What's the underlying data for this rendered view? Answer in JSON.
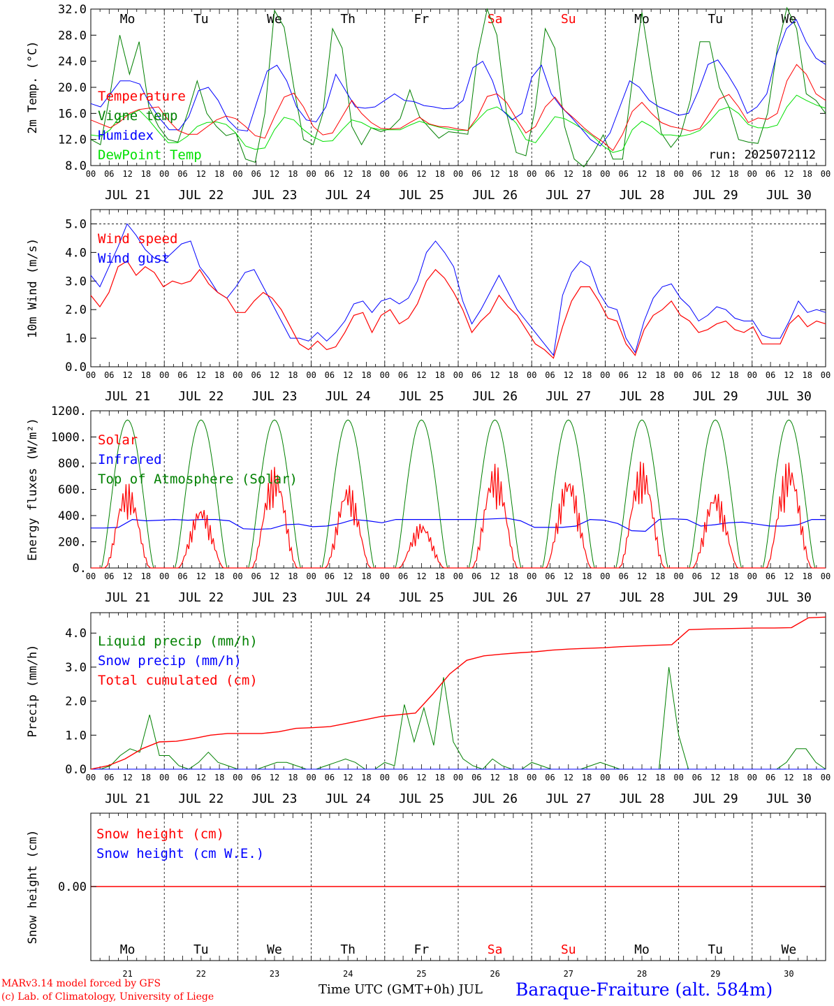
{
  "chart_data": [
    {
      "id": "temp",
      "type": "line",
      "ylabel": "2m Temp. (°C)",
      "ylim": [
        8,
        32
      ],
      "yticks": [
        "8.0",
        "12.0",
        "16.0",
        "20.0",
        "24.0",
        "28.0",
        "32.0"
      ],
      "ytick_values": [
        8,
        12,
        16,
        20,
        24,
        28,
        32
      ],
      "show_day_names": true,
      "note": "run: 2025072112",
      "legend": [
        "Temperature",
        "Vigne temp",
        "Humidex",
        "DewPoint Temp"
      ],
      "series": [
        {
          "name": "Temperature",
          "color": "#ff0000",
          "values": [
            15,
            14.4,
            13.8,
            14.7,
            16,
            16.6,
            16.8,
            17,
            15,
            13.4,
            12.8,
            12.8,
            13.9,
            15,
            15.6,
            15.2,
            14,
            12.6,
            12.2,
            15.5,
            18.5,
            19.1,
            17,
            14,
            12.7,
            13,
            15.5,
            18,
            16,
            14.6,
            13.7,
            13.6,
            13.7,
            14.6,
            15.4,
            14.4,
            14,
            13.9,
            13.6,
            13.4,
            15.5,
            18.6,
            19,
            17.7,
            15.2,
            13,
            14,
            17,
            18.5,
            16.5,
            15.2,
            13.8,
            12.6,
            11.6,
            10.3,
            12.8,
            16.3,
            17.7,
            16,
            14.6,
            14,
            13.7,
            13.3,
            13.7,
            16,
            18.2,
            18.9,
            17,
            14.6,
            15.3,
            15.1,
            16,
            21,
            23.5,
            22,
            19,
            18
          ]
        },
        {
          "name": "Vigne temp",
          "color": "#008000",
          "values": [
            12,
            11.2,
            19,
            28,
            22,
            27,
            17,
            14,
            12,
            11.6,
            16,
            21,
            16,
            14,
            12.6,
            13,
            9,
            8.5,
            16,
            31.8,
            29.2,
            20,
            12,
            11.2,
            16,
            29,
            26,
            14,
            11.2,
            13.8,
            13.2,
            13.7,
            15.2,
            19.6,
            15.5,
            13.8,
            12.2,
            13.2,
            13,
            12.8,
            25,
            32,
            28,
            16,
            10,
            9.5,
            17,
            29,
            26,
            14,
            9,
            7,
            10,
            12.7,
            9,
            9,
            21,
            31.5,
            22,
            13,
            10.8,
            12.7,
            18,
            27,
            27,
            20,
            17,
            12,
            11.6,
            11.4,
            16,
            26,
            33.5,
            29,
            19,
            18,
            16
          ]
        },
        {
          "name": "Humidex",
          "color": "#0000ff",
          "values": [
            17.5,
            17,
            19,
            21,
            21,
            20.5,
            17.5,
            15.3,
            13.5,
            13.5,
            15.5,
            19.5,
            20,
            18,
            15,
            13.5,
            13.3,
            18,
            22.5,
            23.4,
            21,
            17,
            15,
            14.7,
            17,
            22,
            19.5,
            17,
            16.8,
            17,
            18,
            19,
            18,
            17.8,
            17.2,
            17,
            16.7,
            16.8,
            18,
            23,
            24,
            21,
            16.5,
            15,
            16,
            21.5,
            23.4,
            19,
            17,
            15.5,
            13.8,
            12,
            11,
            13,
            17,
            21,
            20,
            18,
            17,
            16.4,
            15.7,
            16,
            19.4,
            23.5,
            24.2,
            22,
            19.5,
            16,
            17,
            19,
            25,
            29,
            30.4,
            27,
            24.5,
            23.5
          ]
        },
        {
          "name": "DewPoint Temp",
          "color": "#00e000",
          "values": [
            12.7,
            12.5,
            13.5,
            15.5,
            15.8,
            16.5,
            15,
            13.2,
            11.5,
            11.5,
            12.5,
            14,
            14.6,
            14.7,
            14.3,
            13,
            11,
            10.5,
            10.7,
            13.5,
            15.4,
            15,
            13.5,
            12.4,
            11.7,
            11.8,
            13.5,
            15,
            14.6,
            13.8,
            13.5,
            13.5,
            13.5,
            14.2,
            14.8,
            14.3,
            13.9,
            13.6,
            13.4,
            13.4,
            15,
            16.5,
            17,
            16,
            14.5,
            12,
            11.5,
            13.5,
            15.5,
            15.2,
            14.4,
            13.5,
            12.4,
            11,
            10,
            10.4,
            13.5,
            14.8,
            14,
            12.7,
            12.7,
            12.5,
            12.8,
            13.4,
            14.8,
            16.5,
            17,
            16,
            14.3,
            13.8,
            13.8,
            14.2,
            17,
            18.8,
            18,
            17.3,
            16.8
          ]
        }
      ]
    },
    {
      "id": "wind",
      "type": "line",
      "ylabel": "10m Wind (m/s)",
      "ylim": [
        0,
        5.5
      ],
      "yticks": [
        "0.0",
        "1.0",
        "2.0",
        "3.0",
        "4.0",
        "5.0"
      ],
      "ytick_values": [
        0,
        1,
        2,
        3,
        4,
        5
      ],
      "hline": 5,
      "legend": [
        "Wind speed",
        "Wind gust"
      ],
      "series": [
        {
          "name": "Wind speed",
          "color": "#ff0000",
          "values": [
            2.5,
            2.1,
            2.6,
            3.5,
            3.7,
            3.2,
            3.5,
            3.3,
            2.8,
            3,
            2.9,
            3,
            3.4,
            2.9,
            2.6,
            2.4,
            1.9,
            1.9,
            2.3,
            2.6,
            2.4,
            2,
            1.4,
            0.8,
            0.6,
            0.9,
            0.6,
            0.7,
            1.2,
            1.8,
            1.9,
            1.2,
            1.8,
            2,
            1.5,
            1.7,
            2.2,
            3,
            3.4,
            3.1,
            2.6,
            2,
            1.2,
            1.6,
            1.9,
            2.5,
            2.1,
            1.8,
            1.3,
            0.8,
            0.6,
            0.3,
            1.4,
            2.3,
            2.8,
            2.8,
            2.3,
            1.7,
            1.6,
            0.8,
            0.4,
            1.3,
            1.8,
            2,
            2.3,
            1.8,
            1.6,
            1.2,
            1.3,
            1.5,
            1.6,
            1.3,
            1.2,
            1.4,
            0.8,
            0.8,
            0.8,
            1.5,
            1.8,
            1.4,
            1.6,
            1.5
          ]
        },
        {
          "name": "Wind gust",
          "color": "#0000ff",
          "values": [
            3.2,
            2.8,
            3.5,
            4.2,
            5,
            4.6,
            4.1,
            3.8,
            3.7,
            4,
            4.3,
            4.4,
            3.5,
            3.1,
            2.6,
            2.4,
            2.8,
            3.3,
            3.4,
            2.8,
            2.2,
            1.6,
            1,
            1,
            0.9,
            1.2,
            0.9,
            1.2,
            1.6,
            2.2,
            2.3,
            1.9,
            2.3,
            2.4,
            2.2,
            2.4,
            3,
            4,
            4.4,
            4,
            3.5,
            2.3,
            1.5,
            2,
            2.6,
            3.2,
            2.6,
            2,
            1.6,
            1.2,
            0.8,
            0.4,
            2.5,
            3.3,
            3.7,
            3.5,
            2.6,
            2.1,
            2,
            1,
            0.5,
            1.6,
            2.4,
            2.8,
            2.9,
            2.4,
            2.1,
            1.6,
            1.8,
            2.1,
            2,
            1.7,
            1.6,
            1.6,
            1.1,
            1,
            1,
            1.6,
            2.3,
            1.9,
            2,
            1.9
          ]
        }
      ]
    },
    {
      "id": "energy",
      "type": "line",
      "ylabel": "Energy fluxes (W/m²)",
      "ylim": [
        0,
        1200
      ],
      "yticks": [
        "0.",
        "200.",
        "400.",
        "600.",
        "800.",
        "1000.",
        "1200."
      ],
      "ytick_values": [
        0,
        200,
        400,
        600,
        800,
        1000,
        1200
      ],
      "legend": [
        "Solar",
        "Infrared",
        "Top of Atmosphere (Solar)"
      ],
      "toa_peak": 1130,
      "solar_peaks": [
        650,
        480,
        780,
        650,
        350,
        800,
        720,
        820,
        600,
        830
      ],
      "infrared_values": [
        305,
        305,
        310,
        370,
        360,
        365,
        370,
        365,
        370,
        370,
        360,
        300,
        295,
        300,
        330,
        335,
        315,
        320,
        340,
        370,
        360,
        345,
        370,
        370,
        370,
        370,
        370,
        370,
        370,
        375,
        380,
        360,
        310,
        310,
        310,
        320,
        370,
        365,
        340,
        285,
        280,
        370,
        375,
        370,
        320,
        330,
        345,
        350,
        335,
        320,
        320,
        330,
        370,
        370
      ]
    },
    {
      "id": "precip",
      "type": "line",
      "ylabel": "Precip (mm/h)",
      "ylim": [
        0,
        4.6
      ],
      "yticks": [
        "0.0",
        "1.0",
        "2.0",
        "3.0",
        "4.0"
      ],
      "ytick_values": [
        0,
        1,
        2,
        3,
        4
      ],
      "legend": [
        "Liquid precip (mm/h)",
        "Snow precip (mm/h)",
        "Total cumulated (cm)"
      ],
      "liquid_values": [
        0,
        0,
        0.1,
        0.4,
        0.6,
        0.5,
        1.6,
        0.4,
        0.4,
        0.1,
        0,
        0.2,
        0.5,
        0.2,
        0.1,
        0,
        0,
        0,
        0.1,
        0.2,
        0.2,
        0.1,
        0,
        0,
        0.1,
        0.2,
        0.3,
        0.2,
        0,
        0,
        0.2,
        0.1,
        1.9,
        0.8,
        1.8,
        0.7,
        2.7,
        0.8,
        0.3,
        0.1,
        0,
        0.3,
        0.1,
        0,
        0,
        0.2,
        0.1,
        0,
        0,
        0,
        0,
        0.1,
        0.2,
        0.1,
        0,
        0,
        0,
        0,
        0,
        3,
        1,
        0,
        0,
        0,
        0,
        0,
        0,
        0,
        0,
        0,
        0,
        0.2,
        0.6,
        0.6,
        0.2,
        0
      ],
      "cumulated_values": [
        0,
        0.1,
        0.3,
        0.6,
        0.8,
        0.82,
        0.9,
        1.0,
        1.05,
        1.05,
        1.05,
        1.1,
        1.2,
        1.22,
        1.25,
        1.35,
        1.45,
        1.55,
        1.6,
        1.65,
        2.2,
        2.8,
        3.2,
        3.33,
        3.38,
        3.42,
        3.45,
        3.5,
        3.53,
        3.55,
        3.57,
        3.6,
        3.62,
        3.64,
        3.66,
        4.1,
        4.12,
        4.13,
        4.14,
        4.15,
        4.15,
        4.16,
        4.45,
        4.47
      ]
    },
    {
      "id": "snow",
      "type": "line",
      "ylabel": "Snow height (cm)",
      "yticks": [
        "0.00"
      ],
      "legend": [
        "Snow height (cm)",
        "Snow height (cm W.E.)"
      ],
      "value": 0
    }
  ],
  "days": [
    {
      "date_label": "JUL 21",
      "name": "Mo",
      "num": "21",
      "weekend": false
    },
    {
      "date_label": "JUL 22",
      "name": "Tu",
      "num": "22",
      "weekend": false
    },
    {
      "date_label": "JUL 23",
      "name": "We",
      "num": "23",
      "weekend": false
    },
    {
      "date_label": "JUL 24",
      "name": "Th",
      "num": "24",
      "weekend": false
    },
    {
      "date_label": "JUL 25",
      "name": "Fr",
      "num": "25",
      "weekend": false
    },
    {
      "date_label": "JUL 26",
      "name": "Sa",
      "num": "26",
      "weekend": true
    },
    {
      "date_label": "JUL 27",
      "name": "Su",
      "num": "27",
      "weekend": true
    },
    {
      "date_label": "JUL 28",
      "name": "Mo",
      "num": "28",
      "weekend": false
    },
    {
      "date_label": "JUL 29",
      "name": "Tu",
      "num": "29",
      "weekend": false
    },
    {
      "date_label": "JUL 30",
      "name": "We",
      "num": "30",
      "weekend": false
    }
  ],
  "hour_ticks": [
    "00",
    "06",
    "12",
    "18"
  ],
  "final_hour": "00",
  "footer": {
    "model": "MARv3.14 model forced by GFS",
    "copyright": "(c) Lab. of Climatology, University of Liege",
    "time_axis": "Time UTC (GMT+0h) JUL",
    "station": "Baraque-Fraiture (alt. 584m)"
  },
  "colors": {
    "red": "#ff0000",
    "green": "#008000",
    "blue": "#0000ff",
    "lightgreen": "#00e000",
    "station": "#0000ff"
  }
}
